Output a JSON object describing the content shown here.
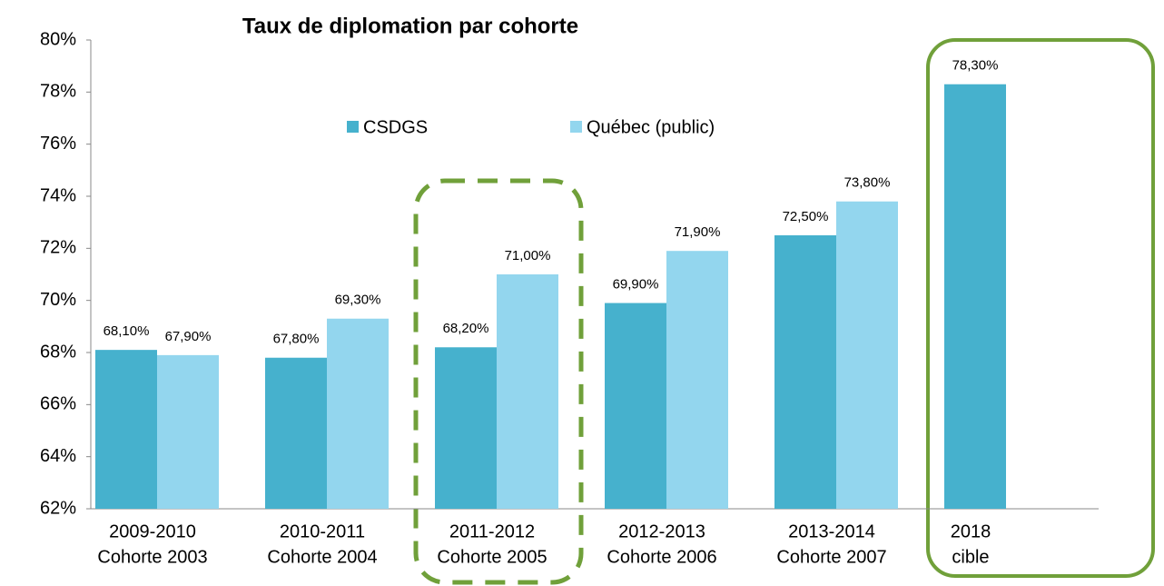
{
  "chart_data": {
    "type": "bar",
    "title": "Taux de diplomation par cohorte",
    "categories": [
      [
        "2009-2010",
        "Cohorte 2003"
      ],
      [
        "2010-2011",
        "Cohorte 2004"
      ],
      [
        "2011-2012",
        "Cohorte 2005"
      ],
      [
        "2012-2013",
        "Cohorte 2006"
      ],
      [
        "2013-2014",
        "Cohorte 2007"
      ],
      [
        "2018",
        "cible"
      ]
    ],
    "series": [
      {
        "name": "CSDGS",
        "color": "#46b1cd",
        "values": [
          68.1,
          67.8,
          68.2,
          69.9,
          72.5,
          78.3
        ],
        "value_labels": [
          "68,10%",
          "67,80%",
          "68,20%",
          "69,90%",
          "72,50%",
          "78,30%"
        ]
      },
      {
        "name": "Québec (public)",
        "color": "#93d6ee",
        "values": [
          67.9,
          69.3,
          71.0,
          71.9,
          73.8,
          null
        ],
        "value_labels": [
          "67,90%",
          "69,30%",
          "71,00%",
          "71,90%",
          "73,80%",
          null
        ]
      }
    ],
    "ylim": [
      62,
      80
    ],
    "yticks": [
      {
        "value": 62,
        "label": "62%"
      },
      {
        "value": 64,
        "label": "64%"
      },
      {
        "value": 66,
        "label": "66%"
      },
      {
        "value": 68,
        "label": "68%"
      },
      {
        "value": 70,
        "label": "70%"
      },
      {
        "value": 72,
        "label": "72%"
      },
      {
        "value": 74,
        "label": "74%"
      },
      {
        "value": 76,
        "label": "76%"
      },
      {
        "value": 78,
        "label": "78%"
      },
      {
        "value": 80,
        "label": "80%"
      }
    ],
    "grid": false
  }
}
